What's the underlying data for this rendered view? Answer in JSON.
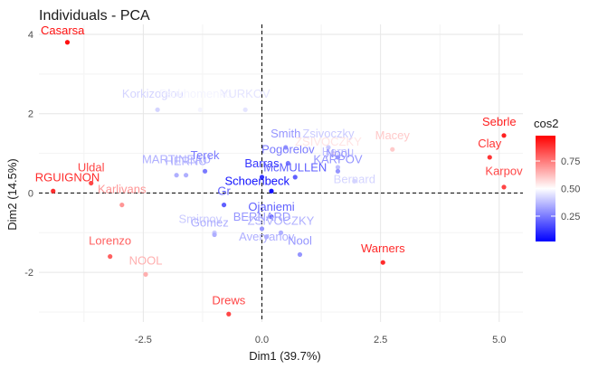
{
  "chart_data": {
    "type": "scatter",
    "title": "Individuals - PCA",
    "xlabel": "Dim1 (39.7%)",
    "ylabel": "Dim2 (14.5%)",
    "xlim": [
      -4.7,
      5.5
    ],
    "ylim": [
      -3.25,
      4.25
    ],
    "xticks": [
      -2.5,
      0,
      2.5,
      5
    ],
    "xtick_labels": [
      "-2.5",
      "0.0",
      "2.5",
      "5.0"
    ],
    "yticks": [
      -2,
      0,
      2,
      4
    ],
    "ytick_labels": [
      "-2",
      "0",
      "2",
      "4"
    ],
    "grid": true,
    "reference_lines": {
      "x": 0,
      "y": 0
    },
    "color_scale": {
      "title": "cos2",
      "low": "#0000ff",
      "mid": "#ffffff",
      "high": "#ff0000",
      "range": [
        0.02,
        0.98
      ],
      "midpoint": 0.5,
      "breaks": [
        0.25,
        0.5,
        0.75
      ],
      "break_labels": [
        "0.25",
        "0.50",
        "0.75"
      ]
    },
    "legend_position": "right",
    "points": [
      {
        "label": "Casarsa",
        "x": -4.1,
        "y": 3.8,
        "cos2": 0.95,
        "lx": -4.2,
        "ly": 4.0
      },
      {
        "label": "Sebrle",
        "x": 5.1,
        "y": 1.45,
        "cos2": 0.92,
        "lx": 5.0,
        "ly": 1.7
      },
      {
        "label": "Clay",
        "x": 4.8,
        "y": 0.9,
        "cos2": 0.88,
        "lx": 4.8,
        "ly": 1.15
      },
      {
        "label": "Karpov",
        "x": 5.1,
        "y": 0.15,
        "cos2": 0.85,
        "lx": 5.1,
        "ly": 0.45
      },
      {
        "label": "Warners",
        "x": 2.55,
        "y": -1.75,
        "cos2": 0.9,
        "lx": 2.55,
        "ly": -1.5
      },
      {
        "label": "Macey",
        "x": 2.75,
        "y": 1.1,
        "cos2": 0.6,
        "lx": 2.75,
        "ly": 1.35
      },
      {
        "label": "Uldal",
        "x": -3.6,
        "y": 0.25,
        "cos2": 0.85,
        "lx": -3.6,
        "ly": 0.55
      },
      {
        "label": "RGUIGNON",
        "x": -4.4,
        "y": 0.05,
        "cos2": 0.9,
        "lx": -4.1,
        "ly": 0.3
      },
      {
        "label": "Korkizoglou",
        "x": -2.2,
        "y": 2.1,
        "cos2": 0.42,
        "lx": -2.3,
        "ly": 2.4
      },
      {
        "label": "Zsivoczky",
        "x": 1.4,
        "y": 1.15,
        "cos2": 0.4,
        "lx": 1.4,
        "ly": 1.4
      },
      {
        "label": "Hernu",
        "x": 1.6,
        "y": 0.65,
        "cos2": 0.38,
        "lx": 1.6,
        "ly": 0.95
      },
      {
        "label": "Parkhomenko",
        "x": -1.3,
        "y": 2.1,
        "cos2": 0.48,
        "lx": -1.4,
        "ly": 2.4
      },
      {
        "label": "YURKOV",
        "x": -0.35,
        "y": 2.1,
        "cos2": 0.45,
        "lx": -0.35,
        "ly": 2.4
      },
      {
        "label": "Smith",
        "x": 0.5,
        "y": 1.15,
        "cos2": 0.3,
        "lx": 0.5,
        "ly": 1.4
      },
      {
        "label": "Pogorelov",
        "x": 0.55,
        "y": 0.75,
        "cos2": 0.25,
        "lx": 0.55,
        "ly": 1.0
      },
      {
        "label": "ZSIVOCZKY",
        "x": 1.5,
        "y": 1.0,
        "cos2": 0.55,
        "lx": 1.4,
        "ly": 1.2
      },
      {
        "label": "Nool",
        "x": 1.6,
        "y": 0.9,
        "cos2": 0.3,
        "lx": 1.6,
        "ly": 0.9
      },
      {
        "label": "KARPOV",
        "x": 1.6,
        "y": 0.55,
        "cos2": 0.3,
        "lx": 1.6,
        "ly": 0.75
      },
      {
        "label": "Barras",
        "x": 0.0,
        "y": 0.4,
        "cos2": 0.12,
        "lx": 0.0,
        "ly": 0.65
      },
      {
        "label": "McMULLEN",
        "x": 0.7,
        "y": 0.4,
        "cos2": 0.2,
        "lx": 0.7,
        "ly": 0.55
      },
      {
        "label": "Schoenbeck",
        "x": 0.2,
        "y": 0.05,
        "cos2": 0.05,
        "lx": -0.1,
        "ly": 0.2
      },
      {
        "label": "Bernard",
        "x": 1.95,
        "y": 0.3,
        "cos2": 0.42,
        "lx": 1.95,
        "ly": 0.25
      },
      {
        "label": "MARTINEAU",
        "x": -1.8,
        "y": 0.45,
        "cos2": 0.35,
        "lx": -1.8,
        "ly": 0.75
      },
      {
        "label": "HERNU",
        "x": -1.6,
        "y": 0.45,
        "cos2": 0.35,
        "lx": -1.6,
        "ly": 0.7
      },
      {
        "label": "Terek",
        "x": -1.2,
        "y": 0.55,
        "cos2": 0.25,
        "lx": -1.2,
        "ly": 0.85
      },
      {
        "label": "Karlivans",
        "x": -2.95,
        "y": -0.3,
        "cos2": 0.7,
        "lx": -2.95,
        "ly": 0.0
      },
      {
        "label": "Gr",
        "x": -0.8,
        "y": -0.3,
        "cos2": 0.2,
        "lx": -0.8,
        "ly": -0.05
      },
      {
        "label": "Ojaniemi",
        "x": 0.2,
        "y": -0.6,
        "cos2": 0.2,
        "lx": 0.2,
        "ly": -0.45
      },
      {
        "label": "BERNARD",
        "x": 0.0,
        "y": -0.9,
        "cos2": 0.3,
        "lx": 0.0,
        "ly": -0.7
      },
      {
        "label": "Smirnov",
        "x": -1.0,
        "y": -1.0,
        "cos2": 0.4,
        "lx": -1.3,
        "ly": -0.75
      },
      {
        "label": "Gomez",
        "x": -1.0,
        "y": -1.05,
        "cos2": 0.35,
        "lx": -1.1,
        "ly": -0.85
      },
      {
        "label": "ZSIVOCZKY",
        "x": 0.4,
        "y": -1.0,
        "cos2": 0.35,
        "lx": 0.4,
        "ly": -0.8
      },
      {
        "label": "Averyanov",
        "x": 0.1,
        "y": -1.1,
        "cos2": 0.35,
        "lx": 0.1,
        "ly": -1.2
      },
      {
        "label": "Nool",
        "x": 0.8,
        "y": -1.55,
        "cos2": 0.3,
        "lx": 0.8,
        "ly": -1.3
      },
      {
        "label": "Lorenzo",
        "x": -3.2,
        "y": -1.6,
        "cos2": 0.8,
        "lx": -3.2,
        "ly": -1.3
      },
      {
        "label": "NOOL",
        "x": -2.45,
        "y": -2.05,
        "cos2": 0.65,
        "lx": -2.45,
        "ly": -1.8
      },
      {
        "label": "Drews",
        "x": -0.7,
        "y": -3.05,
        "cos2": 0.85,
        "lx": -0.7,
        "ly": -2.8
      }
    ]
  }
}
